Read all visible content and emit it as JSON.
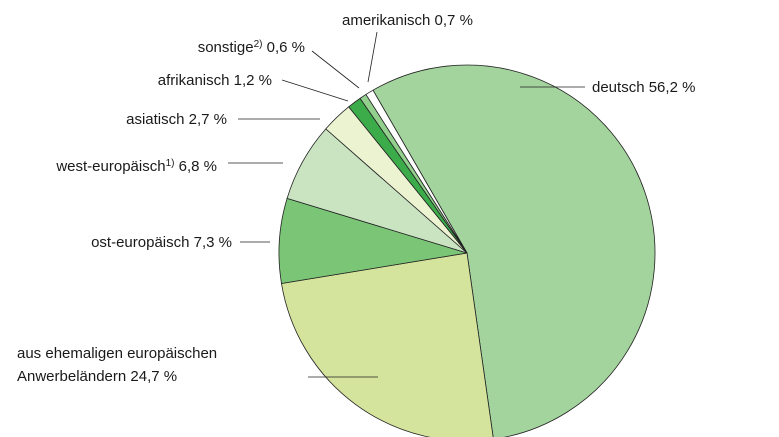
{
  "chart_data": {
    "type": "pie",
    "categories": [
      "deutsch",
      "aus ehemaligen europäischen Anwerbeländern",
      "ost-europäisch",
      "west-europäisch",
      "asiatisch",
      "afrikanisch",
      "sonstige",
      "amerikanisch"
    ],
    "category_notes": [
      null,
      null,
      null,
      "1)",
      null,
      null,
      "2)",
      null
    ],
    "values": [
      56.2,
      24.7,
      7.3,
      6.8,
      2.7,
      1.2,
      0.6,
      0.7
    ],
    "value_labels": [
      "56,2 %",
      "24,7 %",
      "7,3 %",
      "6,8 %",
      "2,7 %",
      "1,2 %",
      "0,6 %",
      "0,7 %"
    ],
    "colors": [
      "#a4d49d",
      "#d5e49c",
      "#7ac576",
      "#cae4c2",
      "#ebf3d1",
      "#3cab4a",
      "#93d08d",
      "#ffffff"
    ]
  }
}
